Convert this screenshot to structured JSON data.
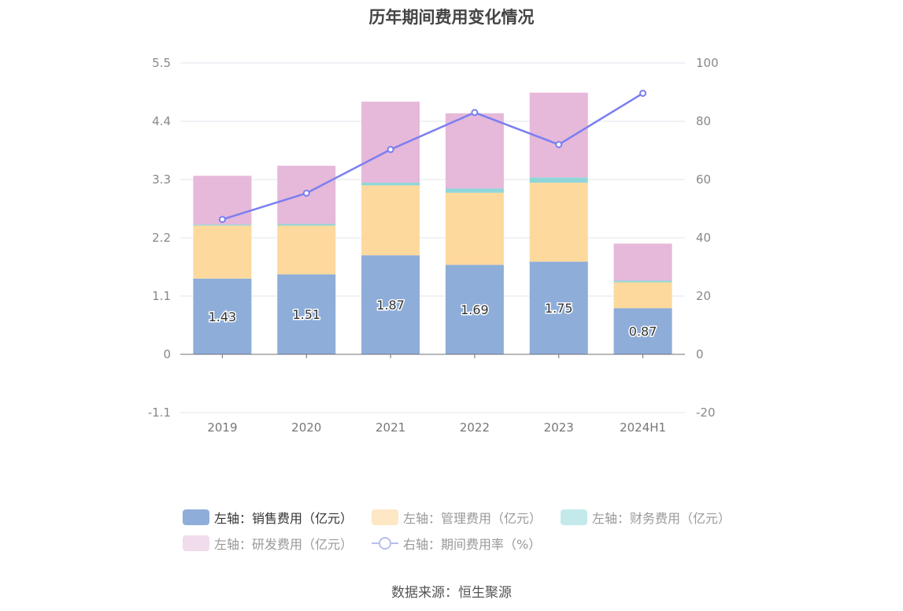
{
  "chart_data": {
    "type": "bar",
    "title": "历年期间费用变化情况",
    "categories": [
      "2019",
      "2020",
      "2021",
      "2022",
      "2023",
      "2024H1"
    ],
    "stacked": true,
    "y_left": {
      "ticks": [
        "5.5",
        "4.4",
        "3.3",
        "2.2",
        "1.1",
        "0",
        "-1.1"
      ],
      "min": -1.1,
      "max": 5.5
    },
    "y_right": {
      "ticks": [
        "100",
        "80",
        "60",
        "40",
        "20",
        "0",
        "-20"
      ],
      "min": -20,
      "max": 100
    },
    "series": [
      {
        "name": "左轴：销售费用（亿元）",
        "axis": "left",
        "color": "#8eadd9",
        "values": [
          1.43,
          1.51,
          1.87,
          1.69,
          1.75,
          0.87
        ],
        "labels": [
          "1.43",
          "1.51",
          "1.87",
          "1.69",
          "1.75",
          "0.87"
        ]
      },
      {
        "name": "左轴：管理费用（亿元）",
        "axis": "left",
        "color": "#fdd99d",
        "values": [
          1.0,
          0.92,
          1.32,
          1.36,
          1.49,
          0.49
        ]
      },
      {
        "name": "左轴：财务费用（亿元）",
        "axis": "left",
        "color": "#8fd6d8",
        "values": [
          0.02,
          0.03,
          0.05,
          0.08,
          0.1,
          0.03
        ]
      },
      {
        "name": "左轴：研发费用（亿元）",
        "axis": "left",
        "color": "#e6b8da",
        "values": [
          0.92,
          1.1,
          1.53,
          1.42,
          1.6,
          0.7
        ]
      },
      {
        "name": "右轴：期间费用率（%）",
        "axis": "right",
        "type": "line",
        "color": "#7b7ff0",
        "values": [
          46.3,
          55.3,
          70.3,
          83.0,
          72.0,
          89.6
        ]
      }
    ],
    "legend_position": "bottom",
    "grid": true
  },
  "legend": {
    "items": [
      {
        "label": "左轴：销售费用（亿元）",
        "color": "#8eadd9",
        "active": true
      },
      {
        "label": "左轴：管理费用（亿元）",
        "color": "#fde7c4",
        "active": false
      },
      {
        "label": "左轴：财务费用（亿元）",
        "color": "#c4e9ea",
        "active": false
      },
      {
        "label": "左轴：研发费用（亿元）",
        "color": "#f1dcec",
        "active": false
      },
      {
        "label": "右轴：期间费用率（%）",
        "color": "#b8bdf2",
        "active": false
      }
    ]
  },
  "source": "数据来源：恒生聚源"
}
